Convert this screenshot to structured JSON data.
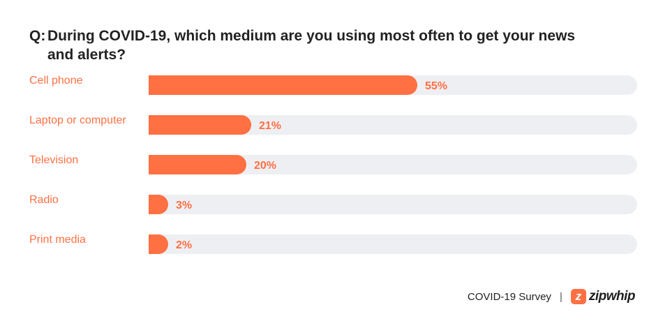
{
  "chart_data": {
    "type": "bar",
    "orientation": "horizontal",
    "title_prefix": "Q:",
    "title_line1": "During COVID-19, which medium are you using most often to get your news",
    "title_line2": "and alerts?",
    "categories": [
      "Cell phone",
      "Laptop or computer",
      "Television",
      "Radio",
      "Print media"
    ],
    "values": [
      55,
      21,
      20,
      3,
      2
    ],
    "value_labels": [
      "55%",
      "21%",
      "20%",
      "3%",
      "2%"
    ],
    "xlim": [
      0,
      100
    ],
    "unit": "%",
    "grid": false,
    "legend": "none",
    "colors": {
      "bar": "#ff7043",
      "track": "#eeeff3",
      "category_text": "#ff7043",
      "value_text": "#ff7043"
    }
  },
  "footer": {
    "survey_label": "COVID-19 Survey",
    "separator": "|",
    "logo_mark": "z",
    "logo_text": "zipwhip",
    "logo_trademark": "™"
  }
}
